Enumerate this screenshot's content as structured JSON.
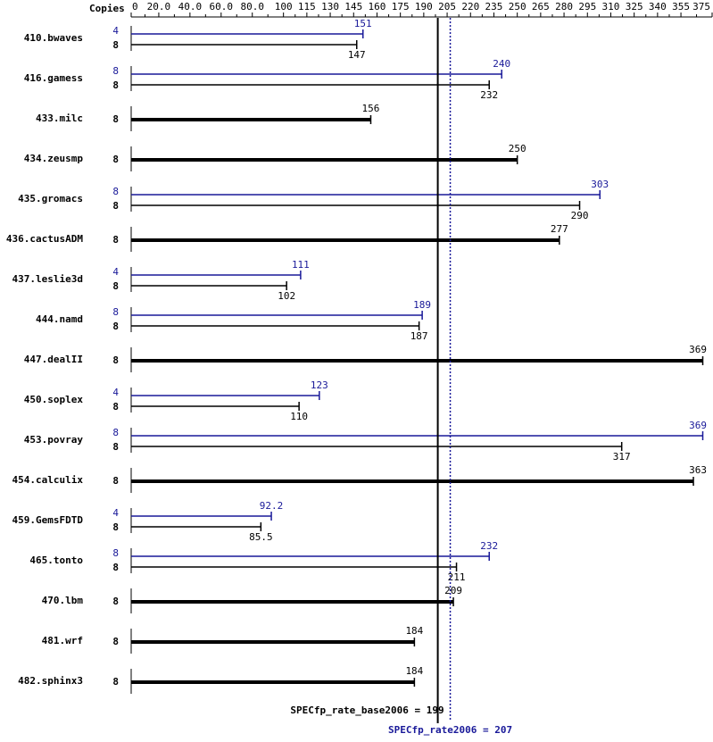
{
  "chart_data": {
    "type": "bar",
    "orientation": "horizontal",
    "axis_label": "Copies",
    "categories": [
      "410.bwaves",
      "416.gamess",
      "433.milc",
      "434.zeusmp",
      "435.gromacs",
      "436.cactusADM",
      "437.leslie3d",
      "444.namd",
      "447.dealII",
      "450.soplex",
      "453.povray",
      "454.calculix",
      "459.GemsFDTD",
      "465.tonto",
      "470.lbm",
      "481.wrf",
      "482.sphinx3"
    ],
    "base": {
      "color": "#000000",
      "copies": [
        8,
        8,
        8,
        8,
        8,
        8,
        8,
        8,
        8,
        8,
        8,
        8,
        8,
        8,
        8,
        8,
        8
      ],
      "values": [
        147,
        232,
        156,
        250,
        290,
        277,
        102,
        187,
        369,
        110,
        317,
        363,
        85.5,
        211,
        209,
        184,
        184
      ]
    },
    "peak": {
      "color": "#191999",
      "copies": [
        4,
        8,
        null,
        null,
        8,
        null,
        4,
        8,
        null,
        4,
        8,
        null,
        4,
        8,
        null,
        null,
        null
      ],
      "values": [
        151,
        240,
        null,
        null,
        303,
        null,
        111,
        189,
        null,
        123,
        369,
        null,
        92.2,
        232,
        null,
        null,
        null
      ]
    },
    "xlim": [
      0,
      375
    ],
    "xticks": [
      0,
      {
        "value": 20,
        "label": "20.0"
      },
      {
        "value": 40,
        "label": "40.0"
      },
      {
        "value": 60,
        "label": "60.0"
      },
      {
        "value": 80,
        "label": "80.0"
      },
      100,
      115,
      130,
      145,
      160,
      175,
      190,
      205,
      220,
      235,
      250,
      265,
      280,
      295,
      310,
      325,
      340,
      355,
      375
    ],
    "reference_lines": [
      {
        "label": "SPECfp_rate_base2006 = 199",
        "value": 199,
        "color": "#000000",
        "style": "solid"
      },
      {
        "label": "SPECfp_rate2006 = 207",
        "value": 207,
        "color": "#191999",
        "style": "dotted"
      }
    ]
  }
}
